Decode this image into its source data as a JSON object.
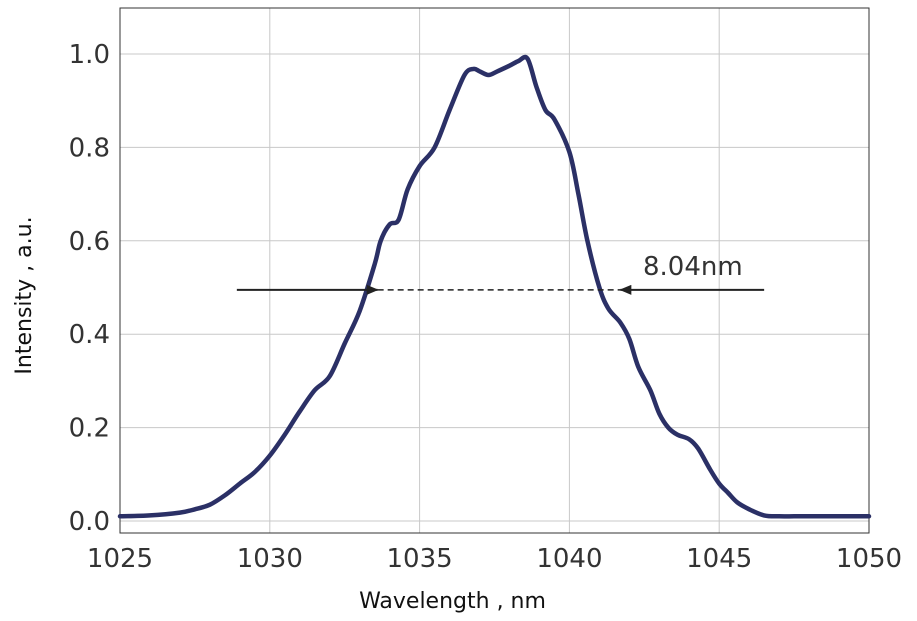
{
  "chart_data": {
    "type": "line",
    "title": "",
    "xlabel": "Wavelength , nm",
    "ylabel": "Intensity , a.u.",
    "xlim": [
      1025,
      1050
    ],
    "ylim": [
      0.0,
      1.0
    ],
    "xticks": [
      1025,
      1030,
      1035,
      1040,
      1045,
      1050
    ],
    "yticks": [
      0.0,
      0.2,
      0.4,
      0.6,
      0.8,
      1.0
    ],
    "xtick_labels": [
      "1025",
      "1030",
      "1035",
      "1040",
      "1045",
      "1050"
    ],
    "ytick_labels": [
      "0.0",
      "0.2",
      "0.4",
      "0.6",
      "0.8",
      "1.0"
    ],
    "grid": true,
    "series": [
      {
        "color": "#2b3066",
        "x": [
          1025.0,
          1026.0,
          1027.0,
          1027.5,
          1028.0,
          1028.5,
          1029.0,
          1029.5,
          1030.0,
          1030.5,
          1031.0,
          1031.5,
          1032.0,
          1032.5,
          1033.0,
          1033.5,
          1033.7,
          1034.0,
          1034.3,
          1034.6,
          1035.0,
          1035.5,
          1036.0,
          1036.5,
          1036.8,
          1037.0,
          1037.3,
          1037.6,
          1038.0,
          1038.3,
          1038.6,
          1038.9,
          1039.2,
          1039.5,
          1040.0,
          1040.3,
          1040.6,
          1041.0,
          1041.3,
          1041.7,
          1042.0,
          1042.3,
          1042.7,
          1043.0,
          1043.3,
          1043.6,
          1044.0,
          1044.3,
          1044.7,
          1045.0,
          1045.3,
          1045.6,
          1046.0,
          1046.5,
          1047.0,
          1047.5,
          1048.0,
          1049.0,
          1050.0
        ],
        "y": [
          0.01,
          0.012,
          0.018,
          0.025,
          0.035,
          0.055,
          0.08,
          0.105,
          0.14,
          0.185,
          0.235,
          0.28,
          0.31,
          0.38,
          0.45,
          0.55,
          0.6,
          0.635,
          0.645,
          0.71,
          0.76,
          0.8,
          0.88,
          0.955,
          0.968,
          0.963,
          0.955,
          0.963,
          0.975,
          0.985,
          0.99,
          0.93,
          0.88,
          0.86,
          0.79,
          0.7,
          0.6,
          0.5,
          0.455,
          0.425,
          0.39,
          0.33,
          0.28,
          0.23,
          0.2,
          0.185,
          0.175,
          0.155,
          0.11,
          0.08,
          0.06,
          0.04,
          0.025,
          0.012,
          0.01,
          0.01,
          0.01,
          0.01,
          0.01
        ]
      }
    ],
    "annotation": {
      "text": "8.04nm",
      "left_x": 1033.6,
      "right_x": 1041.7,
      "y": 0.495,
      "left_arrow_tail_x": 1028.9,
      "right_arrow_tail_x": 1046.5
    }
  }
}
